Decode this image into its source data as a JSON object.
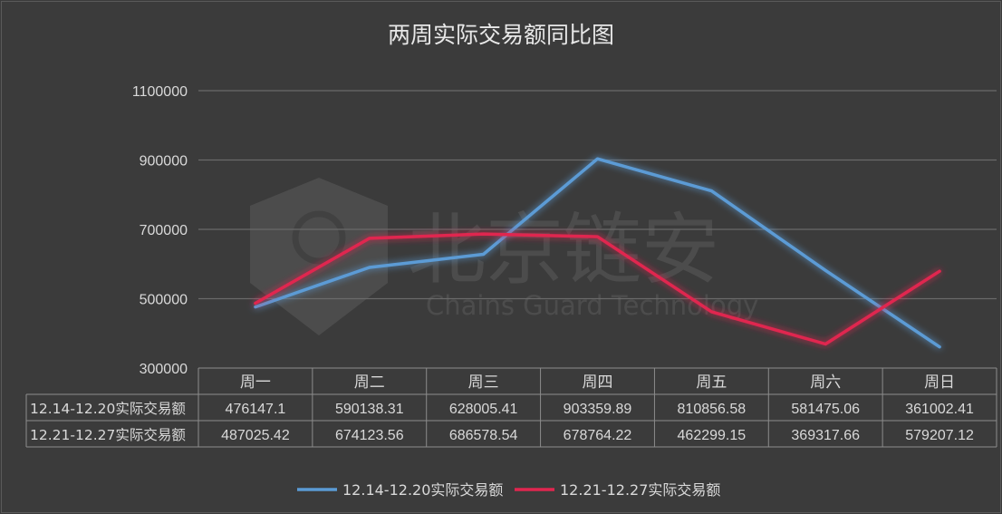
{
  "chart_data": {
    "type": "line",
    "title": "两周实际交易额同比图",
    "categories": [
      "周一",
      "周二",
      "周三",
      "周四",
      "周五",
      "周六",
      "周日"
    ],
    "ylim": [
      300000,
      1100000
    ],
    "yticks": [
      "1100000",
      "900000",
      "700000",
      "500000",
      "300000"
    ],
    "grid": true,
    "legend": "bottom",
    "series": [
      {
        "name": "12.14-12.20实际交易额",
        "color": "#5b9bd5",
        "values": [
          476147.1,
          590138.31,
          628005.41,
          903359.89,
          810856.58,
          581475.06,
          361002.41
        ],
        "labels": [
          "476147.1",
          "590138.31",
          "628005.41",
          "903359.89",
          "810856.58",
          "581475.06",
          "361002.41"
        ]
      },
      {
        "name": "12.21-12.27实际交易额",
        "color": "#e0264f",
        "values": [
          487025.42,
          674123.56,
          686578.54,
          678764.22,
          462299.15,
          369317.66,
          579207.12
        ],
        "labels": [
          "487025.42",
          "674123.56",
          "686578.54",
          "678764.22",
          "462299.15",
          "369317.66",
          "579207.12"
        ]
      }
    ]
  },
  "watermark": {
    "text_cn": "北京链安",
    "text_en": "Chains Guard Technology"
  },
  "colors": {
    "background": "#3b3b3b",
    "gridline": "#6a6a6a",
    "text": "#d9d9d9",
    "table_border": "#8c8c8c"
  }
}
